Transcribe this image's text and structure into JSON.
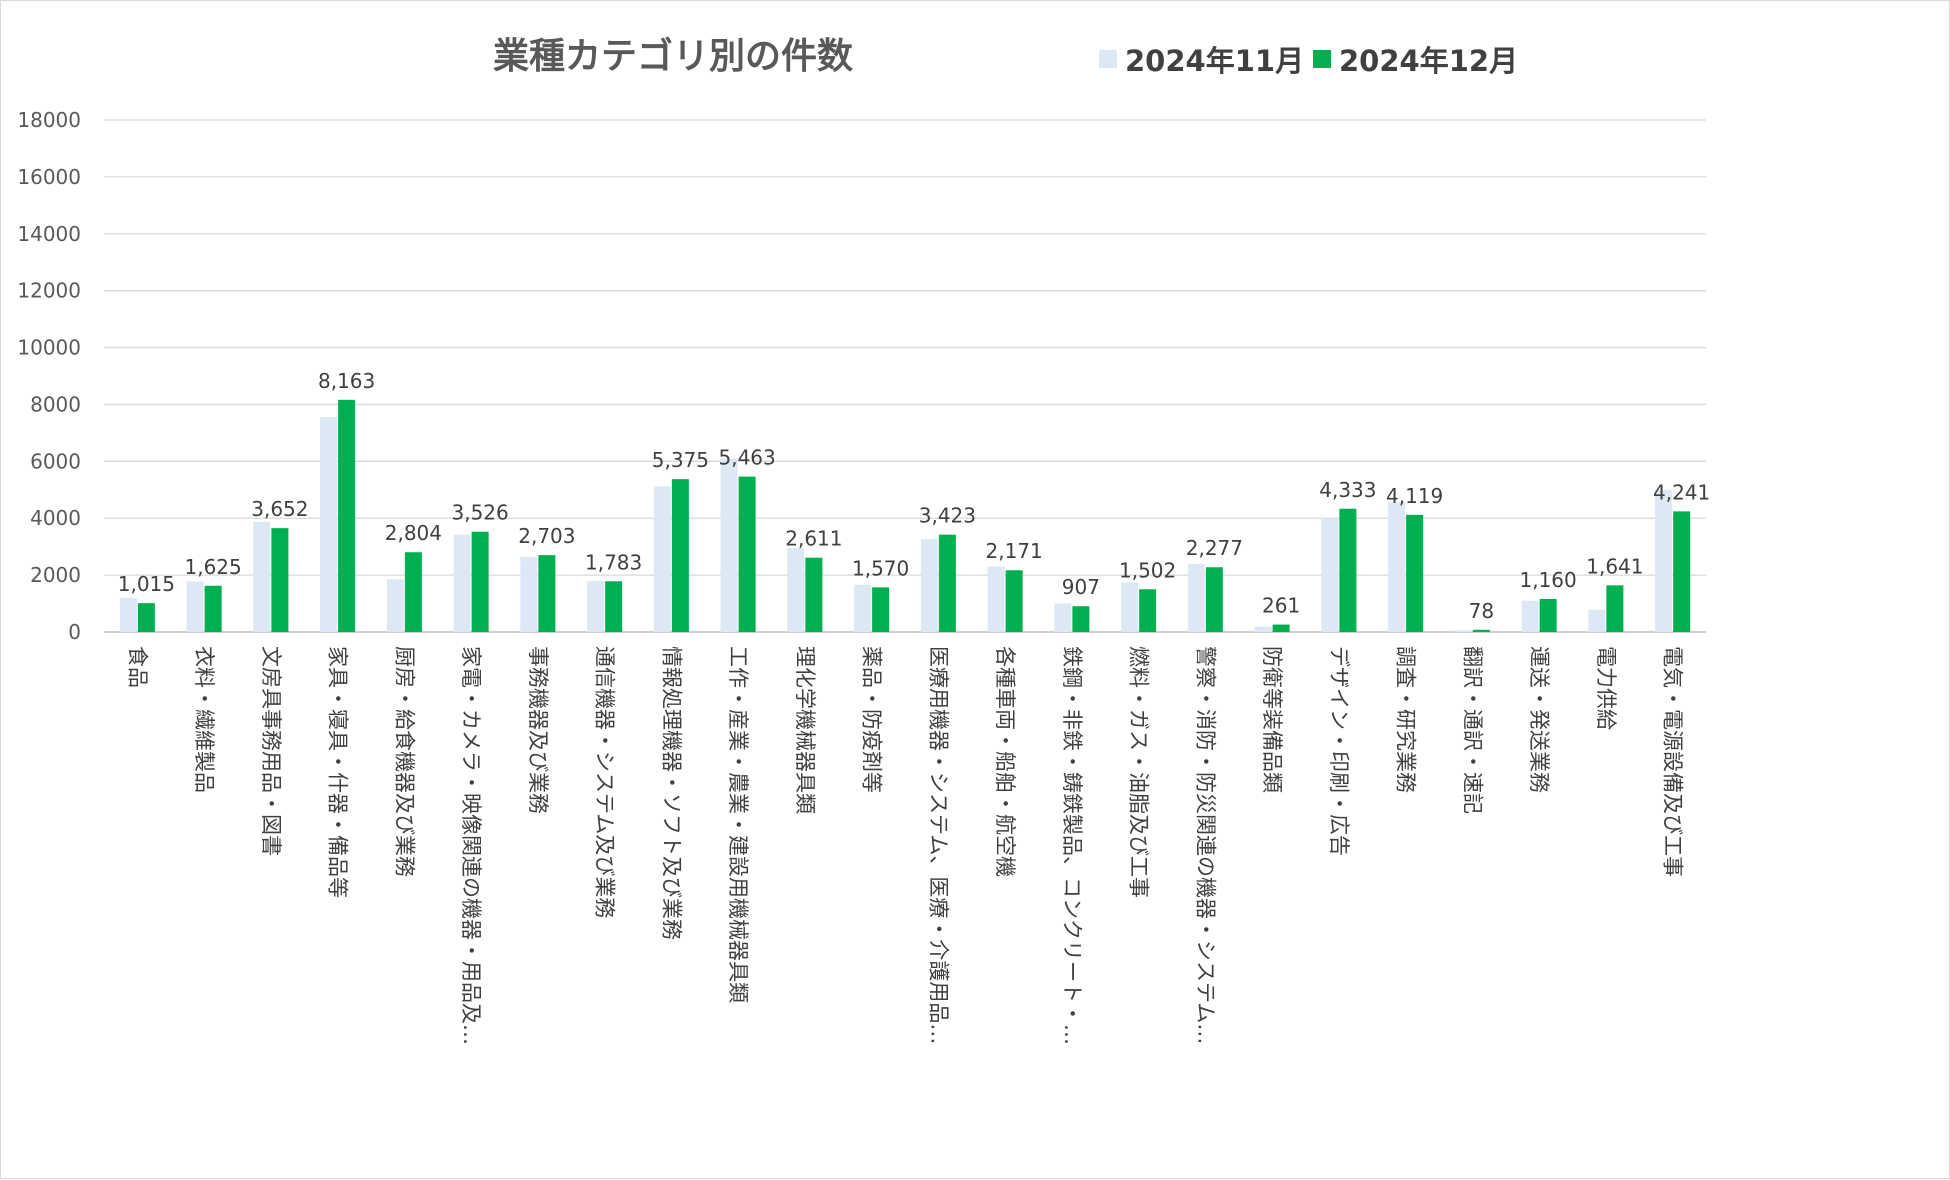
{
  "chart_data": {
    "type": "bar",
    "title": "業種カテゴリ別の件数",
    "xlabel": "",
    "ylabel": "",
    "ylim": [
      0,
      18000
    ],
    "yticks": [
      0,
      2000,
      4000,
      6000,
      8000,
      10000,
      12000,
      14000,
      16000,
      18000
    ],
    "grid": true,
    "legend_position": "top",
    "categories": [
      "食品",
      "衣料・繊維製品",
      "文房具事務用品・図書",
      "家具・寝具・什器・備品等",
      "厨房・給食機器及び業務",
      "家電・カメラ・映像関連の機器・用品及…",
      "事務機器及び業務",
      "通信機器・システム及び業務",
      "情報処理機器・ソフト及び業務",
      "工作・産業・農業・建設用機械器具類",
      "理化学機械器具類",
      "薬品・防疫剤等",
      "医療用機器・システム、医療・介護用品…",
      "各種車両・船舶・航空機",
      "鉄鋼・非鉄・鋳鉄製品、コンクリート・…",
      "燃料・ガス・油脂及び工事",
      "警察・消防・防災関連の機器・システム…",
      "防衛等装備品類",
      "デザイン・印刷・広告",
      "調査・研究業務",
      "翻訳・通訳・速記",
      "運送・発送業務",
      "電力供給",
      "電気・電源設備及び工事"
    ],
    "series": [
      {
        "name": "2024年11月",
        "color": "#dde8f5",
        "values": [
          1200,
          1780,
          3870,
          7560,
          1850,
          3420,
          2640,
          1790,
          5120,
          6100,
          2950,
          1660,
          3270,
          2300,
          1000,
          1740,
          2390,
          190,
          4000,
          4560,
          60,
          1100,
          780,
          5000
        ]
      },
      {
        "name": "2024年12月",
        "color": "#00b050",
        "values": [
          1015,
          1625,
          3652,
          8163,
          2804,
          3526,
          2703,
          1783,
          5375,
          5463,
          2611,
          1570,
          3423,
          2171,
          907,
          1502,
          2277,
          261,
          4333,
          4119,
          78,
          1160,
          1641,
          4241
        ],
        "data_labels": [
          "1,015",
          "1,625",
          "3,652",
          "8,163",
          "2,804",
          "3,526",
          "2,703",
          "1,783",
          "5,375",
          "5,463",
          "2,611",
          "1,570",
          "3,423",
          "2,171",
          "907",
          "1,502",
          "2,277",
          "261",
          "4,333",
          "4,119",
          "78",
          "1,160",
          "1,641",
          "4,241"
        ]
      }
    ]
  }
}
